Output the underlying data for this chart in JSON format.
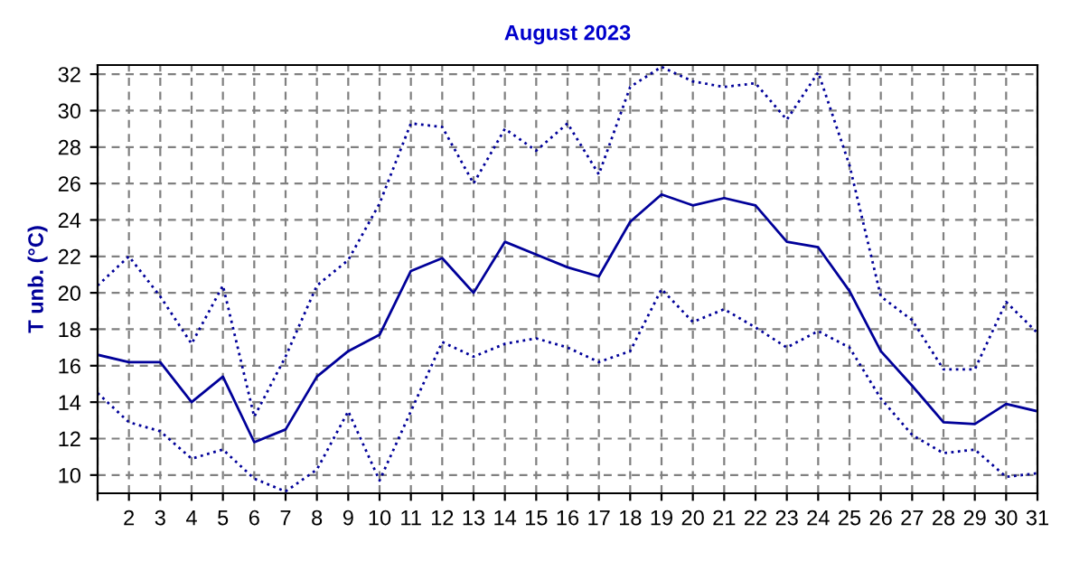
{
  "chart_data": {
    "type": "line",
    "title": "August 2023",
    "ylabel": "T unb. (°C)",
    "x": [
      1,
      2,
      3,
      4,
      5,
      6,
      7,
      8,
      9,
      10,
      11,
      12,
      13,
      14,
      15,
      16,
      17,
      18,
      19,
      20,
      21,
      22,
      23,
      24,
      25,
      26,
      27,
      28,
      29,
      30,
      31
    ],
    "series": [
      {
        "color": "#000099",
        "line_style": "dotted",
        "values": [
          20.4,
          22.0,
          19.8,
          17.2,
          20.4,
          13.2,
          16.5,
          20.4,
          21.8,
          24.9,
          29.3,
          29.1,
          26.0,
          29.0,
          27.8,
          29.3,
          26.5,
          31.3,
          32.4,
          31.6,
          31.3,
          31.5,
          29.5,
          32.1,
          27.0,
          19.8,
          18.5,
          15.8,
          15.8,
          19.5,
          17.8
        ]
      },
      {
        "color": "#000099",
        "line_style": "solid",
        "values": [
          16.6,
          16.2,
          16.2,
          14.0,
          15.4,
          11.8,
          12.5,
          15.4,
          16.8,
          17.7,
          21.2,
          21.9,
          20.0,
          22.8,
          22.1,
          21.4,
          20.9,
          23.9,
          25.4,
          24.8,
          25.2,
          24.8,
          22.8,
          22.5,
          20.1,
          16.8,
          14.9,
          12.9,
          12.8,
          13.9,
          13.5
        ]
      },
      {
        "color": "#000099",
        "line_style": "dotted",
        "values": [
          14.5,
          12.9,
          12.4,
          10.9,
          11.4,
          9.8,
          9.1,
          10.3,
          13.5,
          9.7,
          13.5,
          17.3,
          16.5,
          17.2,
          17.5,
          17.0,
          16.2,
          16.8,
          20.2,
          18.4,
          19.1,
          18.1,
          17.0,
          17.9,
          17.0,
          14.2,
          12.2,
          11.2,
          11.4,
          9.9,
          10.1
        ]
      }
    ],
    "xlim": [
      1,
      31
    ],
    "ylim": [
      9,
      32.5
    ],
    "xticks": [
      {
        "value": 1,
        "label": null
      },
      2,
      3,
      4,
      5,
      6,
      7,
      8,
      9,
      10,
      11,
      12,
      13,
      14,
      15,
      16,
      17,
      18,
      19,
      20,
      21,
      22,
      23,
      24,
      25,
      26,
      27,
      28,
      29,
      30,
      31
    ],
    "yticks": [
      10,
      12,
      14,
      16,
      18,
      20,
      22,
      24,
      26,
      28,
      30,
      32
    ],
    "grid": true,
    "legend": false,
    "marker": "none"
  }
}
